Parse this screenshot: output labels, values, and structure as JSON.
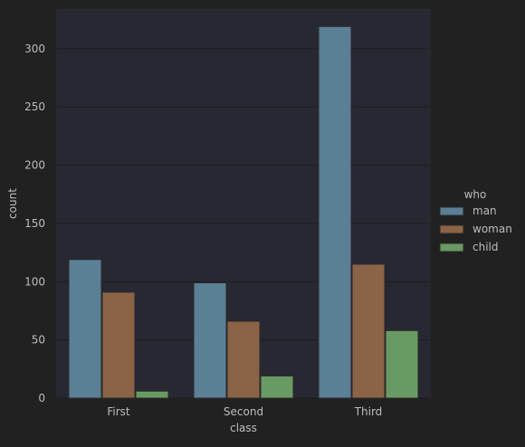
{
  "chart_data": {
    "type": "bar",
    "title": "",
    "xlabel": "class",
    "ylabel": "count",
    "categories": [
      "First",
      "Second",
      "Third"
    ],
    "series": [
      {
        "name": "man",
        "values": [
          119,
          99,
          319
        ],
        "color": "#5b7f95"
      },
      {
        "name": "woman",
        "values": [
          91,
          66,
          115
        ],
        "color": "#8b6346"
      },
      {
        "name": "child",
        "values": [
          6,
          19,
          58
        ],
        "color": "#6a9a63"
      }
    ],
    "ylim": [
      0,
      334
    ],
    "yticks": [
      0,
      50,
      100,
      150,
      200,
      250,
      300
    ],
    "grid": true,
    "legend": {
      "title": "who",
      "placement": "right"
    }
  },
  "colors": {
    "page_background": "#212121",
    "plot_background": "#272832",
    "gridline": "#1e1e1e",
    "text": "#bdbdbd",
    "bar_edge": "#2a2a2a"
  }
}
